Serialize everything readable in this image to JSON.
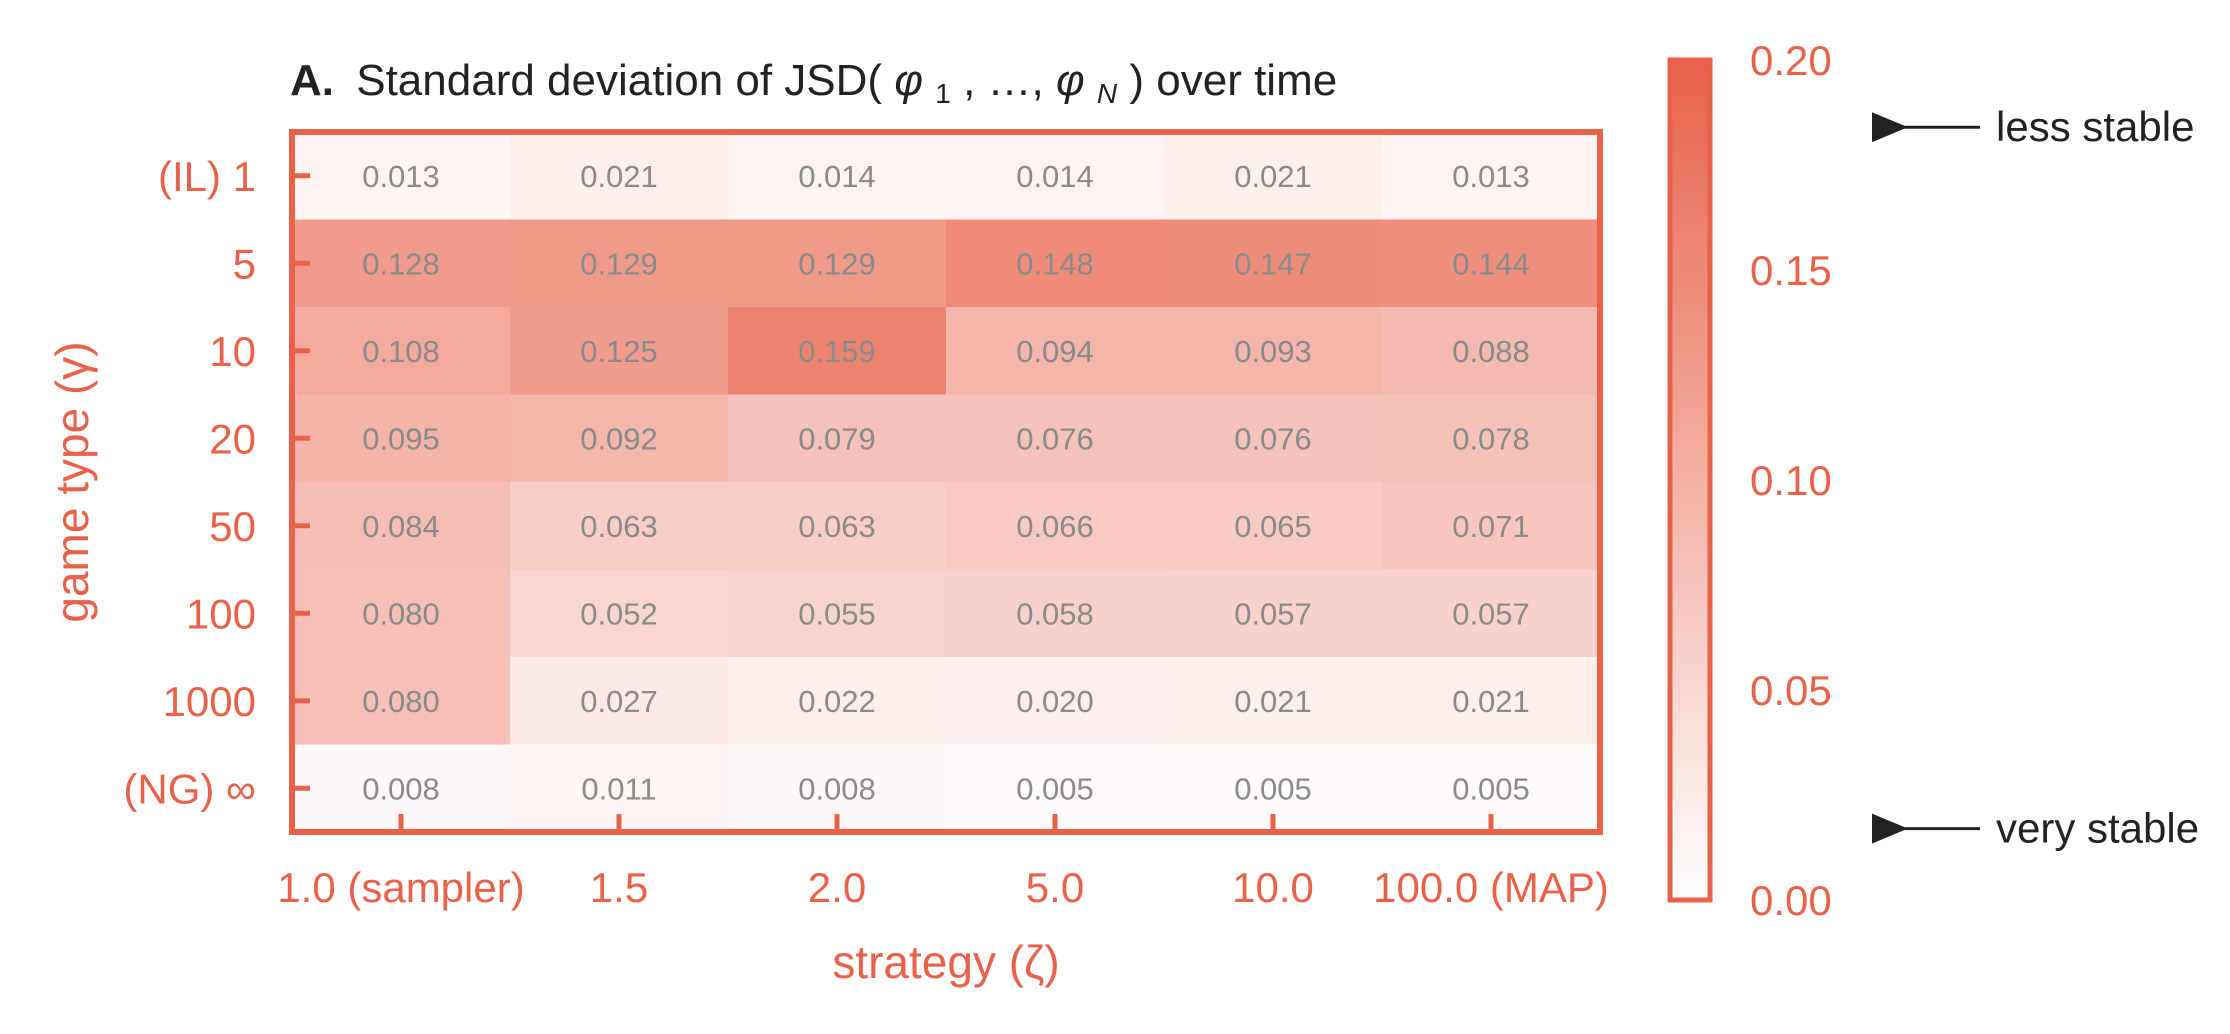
{
  "chart_data": {
    "type": "heatmap",
    "panel_letter": "A.",
    "title_parts": {
      "prefix": "Standard deviation of JSD(",
      "phi": "φ",
      "sub1": "1",
      "sep": ", …, ",
      "subN": "N",
      "suffix": ") over time"
    },
    "xlabel": "strategy (ζ)",
    "ylabel": "game type (γ)",
    "x_categories": [
      "1.0 (sampler)",
      "1.5",
      "2.0",
      "5.0",
      "10.0",
      "100.0 (MAP)"
    ],
    "y_categories": [
      "(IL) 1",
      "5",
      "10",
      "20",
      "50",
      "100",
      "1000",
      "(NG) ∞"
    ],
    "values": [
      [
        0.013,
        0.021,
        0.014,
        0.014,
        0.021,
        0.013
      ],
      [
        0.128,
        0.129,
        0.129,
        0.148,
        0.147,
        0.144
      ],
      [
        0.108,
        0.125,
        0.159,
        0.094,
        0.093,
        0.088
      ],
      [
        0.095,
        0.092,
        0.079,
        0.076,
        0.076,
        0.078
      ],
      [
        0.084,
        0.063,
        0.063,
        0.066,
        0.065,
        0.071
      ],
      [
        0.08,
        0.052,
        0.055,
        0.058,
        0.057,
        0.057
      ],
      [
        0.08,
        0.027,
        0.022,
        0.02,
        0.021,
        0.021
      ],
      [
        0.008,
        0.011,
        0.008,
        0.005,
        0.005,
        0.005
      ]
    ],
    "value_labels": [
      [
        "0.013",
        "0.021",
        "0.014",
        "0.014",
        "0.021",
        "0.013"
      ],
      [
        "0.128",
        "0.129",
        "0.129",
        "0.148",
        "0.147",
        "0.144"
      ],
      [
        "0.108",
        "0.125",
        "0.159",
        "0.094",
        "0.093",
        "0.088"
      ],
      [
        "0.095",
        "0.092",
        "0.079",
        "0.076",
        "0.076",
        "0.078"
      ],
      [
        "0.084",
        "0.063",
        "0.063",
        "0.066",
        "0.065",
        "0.071"
      ],
      [
        "0.080",
        "0.052",
        "0.055",
        "0.058",
        "0.057",
        "0.057"
      ],
      [
        "0.080",
        "0.027",
        "0.022",
        "0.020",
        "0.021",
        "0.021"
      ],
      [
        "0.008",
        "0.011",
        "0.008",
        "0.005",
        "0.005",
        "0.005"
      ]
    ],
    "colorbar": {
      "range": [
        0.0,
        0.2
      ],
      "ticks": [
        "0.20",
        "0.15",
        "0.10",
        "0.05",
        "0.00"
      ],
      "tick_values": [
        0.2,
        0.15,
        0.1,
        0.05,
        0.0
      ],
      "annotations": [
        {
          "text": "less stable",
          "value": 0.184
        },
        {
          "text": "very stable",
          "value": 0.017
        }
      ]
    },
    "colors": {
      "max": "#e8624a",
      "min": "#ffffff",
      "axis": "#e8624a",
      "cell_text": "#8a8a8a",
      "title_text": "#222222"
    }
  }
}
